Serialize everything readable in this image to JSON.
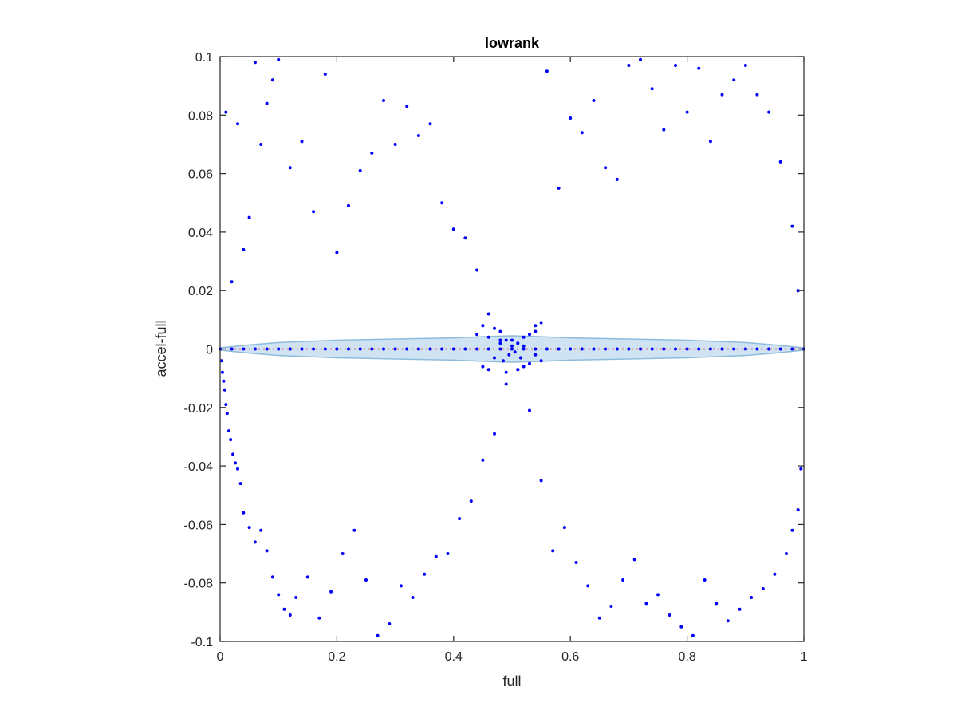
{
  "chart_data": {
    "type": "scatter",
    "title": "lowrank",
    "xlabel": "full",
    "ylabel": "accel-full",
    "xlim": [
      0,
      1
    ],
    "ylim": [
      -0.1,
      0.1
    ],
    "xticks": [
      "0",
      "0.2",
      "0.4",
      "0.6",
      "0.8",
      "1"
    ],
    "xtick_values": [
      0,
      0.2,
      0.4,
      0.6,
      0.8,
      1
    ],
    "yticks": [
      "-0.1",
      "-0.08",
      "-0.06",
      "-0.04",
      "-0.02",
      "0",
      "0.02",
      "0.04",
      "0.06",
      "0.08",
      "0.1"
    ],
    "ytick_values": [
      -0.1,
      -0.08,
      -0.06,
      -0.04,
      -0.02,
      0,
      0.02,
      0.04,
      0.06,
      0.08,
      0.1
    ],
    "grid": false,
    "colors": {
      "points": "#0000ff",
      "band_fill": "#cfe3f2",
      "band_stroke": "#8fbcdc",
      "reference_line": "#ff0000",
      "axes": "#262626"
    },
    "reference_line": {
      "y": 0,
      "style": "dotted"
    },
    "band": {
      "x": [
        0,
        0.05,
        0.1,
        0.2,
        0.3,
        0.4,
        0.45,
        0.5,
        0.55,
        0.6,
        0.7,
        0.8,
        0.9,
        0.95,
        1
      ],
      "upper": [
        0.0004,
        0.0014,
        0.0022,
        0.003,
        0.0034,
        0.0038,
        0.0042,
        0.0045,
        0.0042,
        0.0038,
        0.0034,
        0.003,
        0.0022,
        0.0014,
        0.0004
      ],
      "lower": [
        -0.0004,
        -0.0014,
        -0.0022,
        -0.003,
        -0.0034,
        -0.0038,
        -0.0042,
        -0.0045,
        -0.0042,
        -0.0038,
        -0.0034,
        -0.003,
        -0.0022,
        -0.0014,
        -0.0004
      ]
    },
    "series": [
      {
        "x": [
          0.01,
          0.02,
          0.03,
          0.04,
          0.05,
          0.06,
          0.07,
          0.08,
          0.09,
          0.1,
          0.12,
          0.14,
          0.16,
          0.18,
          0.2,
          0.22,
          0.24,
          0.26,
          0.28,
          0.3,
          0.32,
          0.34,
          0.36,
          0.38,
          0.4,
          0.42,
          0.44,
          0.46,
          0.48,
          0.5,
          0.52,
          0.54,
          0.56,
          0.58,
          0.6,
          0.62,
          0.64,
          0.66,
          0.68,
          0.7,
          0.72,
          0.74,
          0.76,
          0.78,
          0.8,
          0.82,
          0.84,
          0.86,
          0.88,
          0.9,
          0.92,
          0.94,
          0.96,
          0.98,
          0.99,
          0.002,
          0.004,
          0.006,
          0.008,
          0.01,
          0.012,
          0.015,
          0.018,
          0.022,
          0.026,
          0.03,
          0.035,
          0.04,
          0.05,
          0.06,
          0.07,
          0.08,
          0.09,
          0.1,
          0.11,
          0.12,
          0.13,
          0.15,
          0.17,
          0.19,
          0.21,
          0.23,
          0.25,
          0.27,
          0.29,
          0.31,
          0.33,
          0.35,
          0.37,
          0.39,
          0.41,
          0.43,
          0.45,
          0.47,
          0.49,
          0.51,
          0.53,
          0.55,
          0.57,
          0.59,
          0.61,
          0.63,
          0.65,
          0.67,
          0.69,
          0.71,
          0.73,
          0.75,
          0.77,
          0.79,
          0.81,
          0.83,
          0.85,
          0.87,
          0.89,
          0.91,
          0.93,
          0.95,
          0.97,
          0.98,
          0.99,
          0.995,
          0.44,
          0.45,
          0.46,
          0.47,
          0.48,
          0.485,
          0.49,
          0.495,
          0.5,
          0.505,
          0.51,
          0.515,
          0.52,
          0.53,
          0.54,
          0.55,
          0.46,
          0.47,
          0.48,
          0.52,
          0.53,
          0.54,
          0.45,
          0.55,
          0.49,
          0.51
        ],
        "y": [
          0.081,
          0.023,
          0.077,
          0.034,
          0.045,
          0.098,
          0.07,
          0.084,
          0.092,
          0.099,
          0.062,
          0.071,
          0.047,
          0.094,
          0.033,
          0.049,
          0.061,
          0.067,
          0.085,
          0.07,
          0.083,
          0.073,
          0.077,
          0.05,
          0.041,
          0.038,
          0.027,
          0.012,
          0.006,
          0.003,
          0.001,
          0.008,
          0.095,
          0.055,
          0.079,
          0.074,
          0.085,
          0.062,
          0.058,
          0.097,
          0.099,
          0.089,
          0.075,
          0.097,
          0.081,
          0.096,
          0.071,
          0.087,
          0.092,
          0.097,
          0.087,
          0.081,
          0.064,
          0.042,
          0.02,
          -0.004,
          -0.008,
          -0.011,
          -0.014,
          -0.019,
          -0.022,
          -0.028,
          -0.031,
          -0.036,
          -0.039,
          -0.041,
          -0.046,
          -0.056,
          -0.061,
          -0.066,
          -0.062,
          -0.069,
          -0.078,
          -0.084,
          -0.089,
          -0.091,
          -0.085,
          -0.078,
          -0.092,
          -0.083,
          -0.07,
          -0.062,
          -0.079,
          -0.098,
          -0.094,
          -0.081,
          -0.085,
          -0.077,
          -0.071,
          -0.07,
          -0.058,
          -0.052,
          -0.038,
          -0.029,
          -0.012,
          -0.007,
          -0.021,
          -0.045,
          -0.069,
          -0.061,
          -0.073,
          -0.081,
          -0.092,
          -0.088,
          -0.079,
          -0.072,
          -0.087,
          -0.084,
          -0.091,
          -0.095,
          -0.098,
          -0.079,
          -0.087,
          -0.093,
          -0.089,
          -0.085,
          -0.082,
          -0.077,
          -0.07,
          -0.062,
          -0.055,
          -0.041,
          0.005,
          -0.006,
          0.004,
          -0.003,
          0.002,
          -0.004,
          0.003,
          -0.002,
          0.001,
          -0.001,
          0.002,
          -0.003,
          0.004,
          -0.005,
          0.006,
          -0.004,
          -0.007,
          0.007,
          0.003,
          -0.006,
          0.005,
          -0.002,
          0.008,
          0.009,
          -0.008,
          -0.007
        ]
      }
    ]
  }
}
